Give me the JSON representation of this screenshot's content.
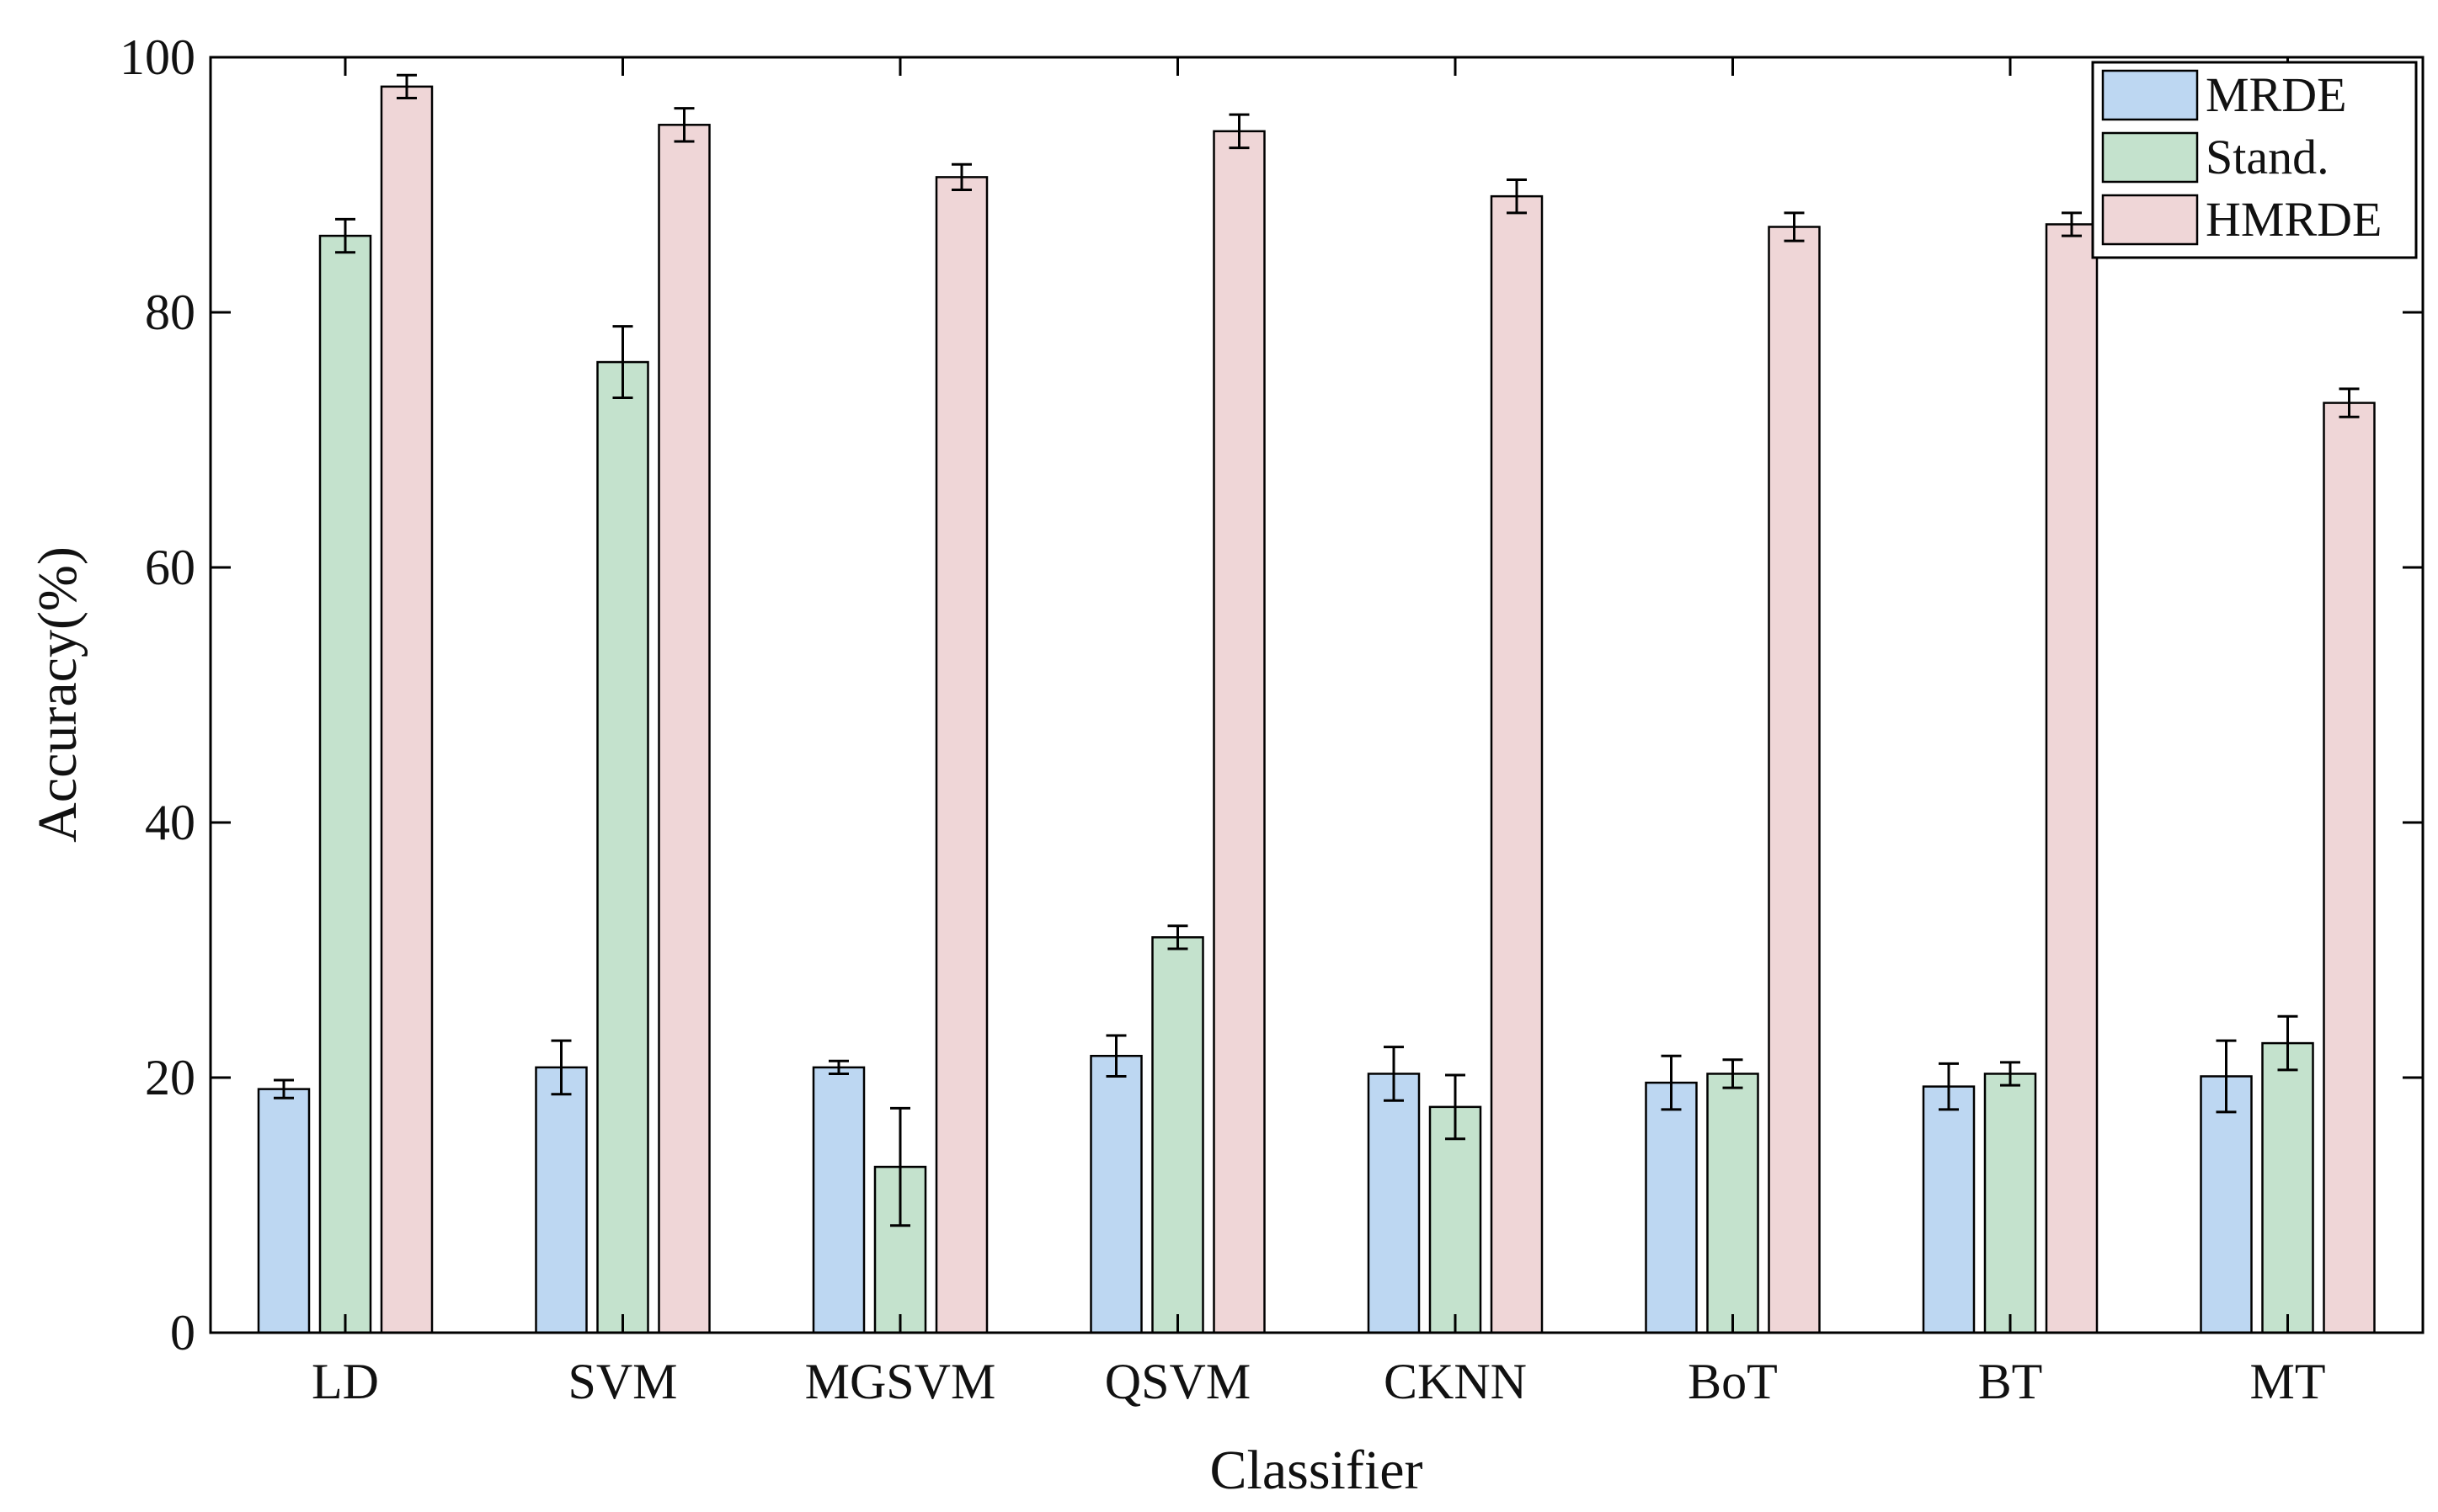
{
  "chart_data": {
    "type": "bar",
    "title": "",
    "xlabel": "Classifier",
    "ylabel": "Accuracy(%)",
    "ylim": [
      0,
      100
    ],
    "yticks": [
      0,
      20,
      40,
      60,
      80,
      100
    ],
    "grid": false,
    "legend_position": "top-right",
    "categories": [
      "LD",
      "SVM",
      "MGSVM",
      "QSVM",
      "CKNN",
      "BoT",
      "BT",
      "MT"
    ],
    "series": [
      {
        "name": "MRDE",
        "color": "#bdd7f2",
        "values": [
          19.1,
          20.8,
          20.8,
          21.7,
          20.3,
          19.6,
          19.3,
          20.1
        ],
        "errors": [
          0.7,
          2.1,
          0.5,
          1.6,
          2.1,
          2.1,
          1.8,
          2.8
        ]
      },
      {
        "name": "Stand.",
        "color": "#c4e2cd",
        "values": [
          86.0,
          76.1,
          13.0,
          31.0,
          17.7,
          20.3,
          20.3,
          22.7
        ],
        "errors": [
          1.3,
          2.8,
          4.6,
          0.9,
          2.5,
          1.1,
          0.9,
          2.1
        ]
      },
      {
        "name": "HMRDE",
        "color": "#efd6d7",
        "values": [
          97.7,
          94.7,
          90.6,
          94.2,
          89.1,
          86.7,
          86.9,
          72.9
        ],
        "errors": [
          0.9,
          1.3,
          1.0,
          1.3,
          1.3,
          1.1,
          0.9,
          1.1
        ]
      }
    ]
  }
}
